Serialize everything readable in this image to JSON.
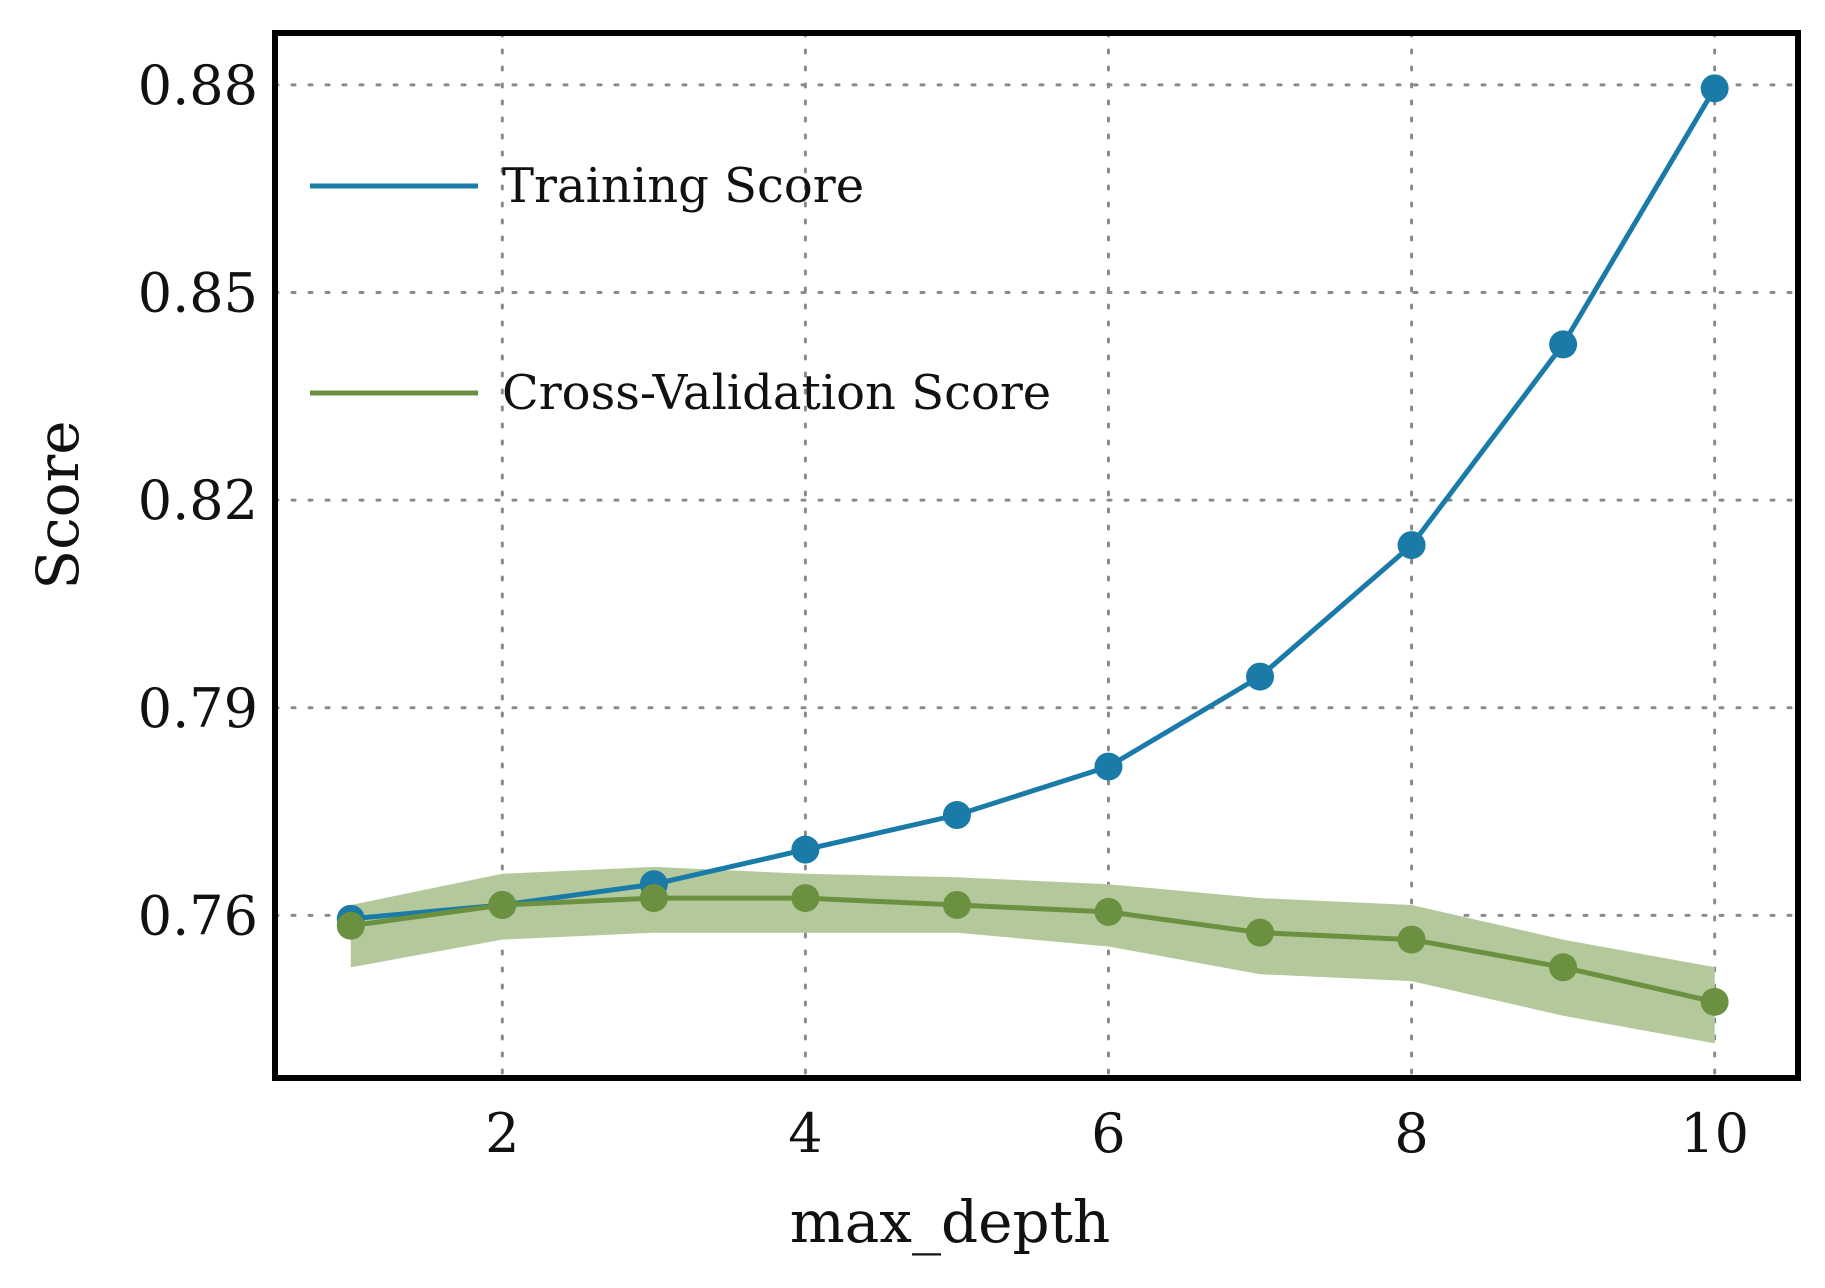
{
  "chart_data": {
    "type": "line",
    "title": "",
    "xlabel": "max_depth",
    "ylabel": "Score",
    "xlim": [
      0.5,
      10.55
    ],
    "ylim": [
      0.7365,
      0.8875
    ],
    "xticks": [
      2,
      4,
      6,
      8,
      10
    ],
    "xtick_labels": [
      "2",
      "4",
      "6",
      "8",
      "10"
    ],
    "yticks": [
      0.76,
      0.79,
      0.82,
      0.85,
      0.88
    ],
    "ytick_labels": [
      "0.76",
      "0.79",
      "0.82",
      "0.85",
      "0.88"
    ],
    "grid": true,
    "legend_position": "top-left",
    "x": [
      1,
      2,
      3,
      4,
      5,
      6,
      7,
      8,
      9,
      10
    ],
    "series": [
      {
        "name": "Training Score",
        "color": "#1a7aa8",
        "values": [
          0.7595,
          0.7615,
          0.7645,
          0.7695,
          0.7745,
          0.7815,
          0.7945,
          0.8135,
          0.8425,
          0.8795
        ]
      },
      {
        "name": "Cross-Validation Score",
        "color": "#6b9140",
        "band_color": "#b3c99c",
        "values": [
          0.7585,
          0.7615,
          0.7625,
          0.7625,
          0.7615,
          0.7605,
          0.7575,
          0.7565,
          0.7525,
          0.7475
        ],
        "lower": [
          0.7525,
          0.7565,
          0.7575,
          0.7575,
          0.7575,
          0.7555,
          0.7515,
          0.7505,
          0.7455,
          0.7415
        ],
        "upper": [
          0.7615,
          0.766,
          0.767,
          0.766,
          0.7655,
          0.7645,
          0.7625,
          0.7615,
          0.7565,
          0.7525
        ]
      }
    ]
  }
}
